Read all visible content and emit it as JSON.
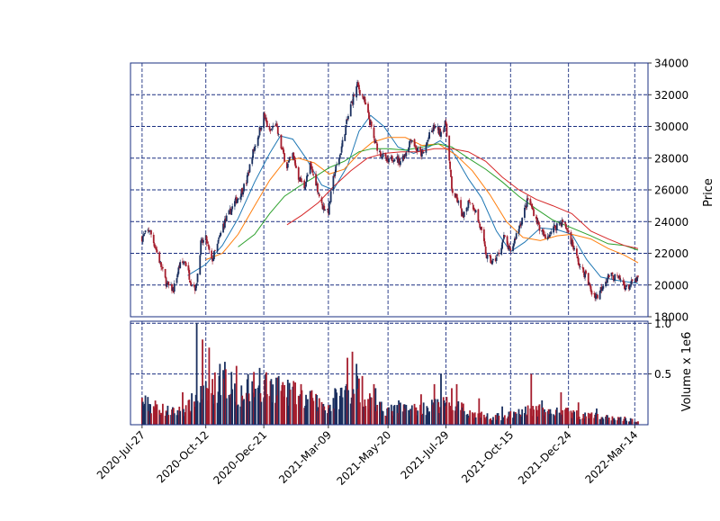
{
  "chart_data": {
    "type": "candlestick",
    "title": "",
    "ylabel": "Price",
    "volume_label": "Volume x 1e6",
    "ylim": [
      18000,
      34000
    ],
    "volume_ylim": [
      0,
      1.02
    ],
    "xlim": [
      "2020-07-13",
      "2022-03-30"
    ],
    "grid": true,
    "grid_style": "dashed",
    "legend": "none",
    "x_ticks": [
      "2020-Jul-27",
      "2020-Oct-12",
      "2020-Dec-21",
      "2021-Mar-09",
      "2021-May-20",
      "2021-Jul-29",
      "2021-Oct-15",
      "2021-Dec-24",
      "2022-Mar-14"
    ],
    "x_tick_dates": [
      "2020-07-27",
      "2020-10-12",
      "2020-12-21",
      "2021-03-09",
      "2021-05-20",
      "2021-07-29",
      "2021-10-15",
      "2021-12-24",
      "2022-03-14"
    ],
    "y_ticks": [
      "18000",
      "20000",
      "22000",
      "24000",
      "26000",
      "28000",
      "30000",
      "32000",
      "34000"
    ],
    "volume_ticks": [
      "0.5",
      "1.0"
    ],
    "colors": {
      "up": "#1a2f5f",
      "down": "#a51d2d",
      "grid": "#1a2f80",
      "ma_short": "#1f77b4",
      "ma_mid": "#ff7f0e",
      "ma_long": "#2ca02c",
      "ma_longest": "#d62728"
    },
    "price_path": [
      [
        "2020-07-27",
        23000
      ],
      [
        "2020-08-05",
        23500
      ],
      [
        "2020-08-12",
        22400
      ],
      [
        "2020-08-20",
        21000
      ],
      [
        "2020-08-26",
        20000
      ],
      [
        "2020-09-03",
        19700
      ],
      [
        "2020-09-10",
        21200
      ],
      [
        "2020-09-17",
        21500
      ],
      [
        "2020-09-24",
        20200
      ],
      [
        "2020-09-30",
        19800
      ],
      [
        "2020-10-06",
        22600
      ],
      [
        "2020-10-12",
        22900
      ],
      [
        "2020-10-19",
        21500
      ],
      [
        "2020-10-26",
        22500
      ],
      [
        "2020-11-02",
        23800
      ],
      [
        "2020-11-09",
        24500
      ],
      [
        "2020-11-16",
        25200
      ],
      [
        "2020-11-23",
        25800
      ],
      [
        "2020-11-30",
        26500
      ],
      [
        "2020-12-07",
        28200
      ],
      [
        "2020-12-14",
        29400
      ],
      [
        "2020-12-21",
        30700
      ],
      [
        "2020-12-28",
        29600
      ],
      [
        "2021-01-04",
        30200
      ],
      [
        "2021-01-11",
        28700
      ],
      [
        "2021-01-18",
        27500
      ],
      [
        "2021-01-25",
        28200
      ],
      [
        "2021-02-01",
        26800
      ],
      [
        "2021-02-08",
        26200
      ],
      [
        "2021-02-15",
        27500
      ],
      [
        "2021-02-22",
        26500
      ],
      [
        "2021-03-01",
        25000
      ],
      [
        "2021-03-09",
        24700
      ],
      [
        "2021-03-16",
        27000
      ],
      [
        "2021-03-23",
        28200
      ],
      [
        "2021-03-30",
        30000
      ],
      [
        "2021-04-06",
        31500
      ],
      [
        "2021-04-13",
        32600
      ],
      [
        "2021-04-20",
        31800
      ],
      [
        "2021-04-27",
        30500
      ],
      [
        "2021-05-04",
        29000
      ],
      [
        "2021-05-11",
        28300
      ],
      [
        "2021-05-20",
        27700
      ],
      [
        "2021-05-27",
        28100
      ],
      [
        "2021-06-03",
        27800
      ],
      [
        "2021-06-10",
        28300
      ],
      [
        "2021-06-17",
        29300
      ],
      [
        "2021-06-24",
        28500
      ],
      [
        "2021-07-01",
        28200
      ],
      [
        "2021-07-08",
        29300
      ],
      [
        "2021-07-15",
        30000
      ],
      [
        "2021-07-22",
        29600
      ],
      [
        "2021-07-29",
        30200
      ],
      [
        "2021-08-05",
        26000
      ],
      [
        "2021-08-12",
        25300
      ],
      [
        "2021-08-19",
        24200
      ],
      [
        "2021-08-26",
        25400
      ],
      [
        "2021-09-02",
        24800
      ],
      [
        "2021-09-09",
        23500
      ],
      [
        "2021-09-16",
        21800
      ],
      [
        "2021-09-23",
        21400
      ],
      [
        "2021-09-30",
        21900
      ],
      [
        "2021-10-07",
        23000
      ],
      [
        "2021-10-15",
        22000
      ],
      [
        "2021-10-22",
        23200
      ],
      [
        "2021-10-29",
        24200
      ],
      [
        "2021-11-05",
        25400
      ],
      [
        "2021-11-12",
        24600
      ],
      [
        "2021-11-19",
        23600
      ],
      [
        "2021-11-26",
        22900
      ],
      [
        "2021-12-03",
        23400
      ],
      [
        "2021-12-10",
        23800
      ],
      [
        "2021-12-17",
        24000
      ],
      [
        "2021-12-24",
        23300
      ],
      [
        "2021-12-31",
        22200
      ],
      [
        "2022-01-07",
        21100
      ],
      [
        "2022-01-14",
        20600
      ],
      [
        "2022-01-21",
        19500
      ],
      [
        "2022-01-28",
        19300
      ],
      [
        "2022-02-04",
        20100
      ],
      [
        "2022-02-11",
        20600
      ],
      [
        "2022-02-18",
        20500
      ],
      [
        "2022-02-25",
        20300
      ],
      [
        "2022-03-04",
        19800
      ],
      [
        "2022-03-11",
        20100
      ],
      [
        "2022-03-18",
        20400
      ]
    ],
    "moving_averages": [
      {
        "color_key": "ma_short",
        "points": [
          [
            "2020-09-20",
            20600
          ],
          [
            "2020-10-12",
            21300
          ],
          [
            "2020-11-01",
            22500
          ],
          [
            "2020-11-20",
            24200
          ],
          [
            "2020-12-10",
            26500
          ],
          [
            "2020-12-28",
            28300
          ],
          [
            "2021-01-10",
            29400
          ],
          [
            "2021-01-25",
            29200
          ],
          [
            "2021-02-10",
            28000
          ],
          [
            "2021-03-01",
            26300
          ],
          [
            "2021-03-15",
            26000
          ],
          [
            "2021-04-01",
            27500
          ],
          [
            "2021-04-15",
            29700
          ],
          [
            "2021-04-29",
            30700
          ],
          [
            "2021-05-15",
            30000
          ],
          [
            "2021-06-01",
            28700
          ],
          [
            "2021-06-20",
            28300
          ],
          [
            "2021-07-08",
            28700
          ],
          [
            "2021-07-22",
            29100
          ],
          [
            "2021-08-05",
            28500
          ],
          [
            "2021-08-25",
            26700
          ],
          [
            "2021-09-10",
            25500
          ],
          [
            "2021-09-28",
            23400
          ],
          [
            "2021-10-15",
            22100
          ],
          [
            "2021-11-01",
            22700
          ],
          [
            "2021-11-20",
            23600
          ],
          [
            "2021-12-10",
            23500
          ],
          [
            "2021-12-28",
            23200
          ],
          [
            "2022-01-15",
            21600
          ],
          [
            "2022-02-01",
            20500
          ],
          [
            "2022-02-20",
            20300
          ],
          [
            "2022-03-18",
            20100
          ]
        ]
      },
      {
        "color_key": "ma_mid",
        "points": [
          [
            "2020-10-12",
            21600
          ],
          [
            "2020-11-01",
            22000
          ],
          [
            "2020-11-20",
            23200
          ],
          [
            "2020-12-10",
            25000
          ],
          [
            "2020-12-28",
            26600
          ],
          [
            "2021-01-15",
            27800
          ],
          [
            "2021-02-01",
            28000
          ],
          [
            "2021-02-20",
            27700
          ],
          [
            "2021-03-10",
            27000
          ],
          [
            "2021-03-28",
            27300
          ],
          [
            "2021-04-15",
            28300
          ],
          [
            "2021-05-01",
            29000
          ],
          [
            "2021-05-20",
            29300
          ],
          [
            "2021-06-10",
            29300
          ],
          [
            "2021-06-30",
            28800
          ],
          [
            "2021-07-20",
            28900
          ],
          [
            "2021-08-10",
            28200
          ],
          [
            "2021-08-30",
            27200
          ],
          [
            "2021-09-20",
            25700
          ],
          [
            "2021-10-10",
            24000
          ],
          [
            "2021-10-30",
            23000
          ],
          [
            "2021-11-20",
            22800
          ],
          [
            "2021-12-10",
            23100
          ],
          [
            "2021-12-28",
            23200
          ],
          [
            "2022-01-20",
            22900
          ],
          [
            "2022-02-10",
            22300
          ],
          [
            "2022-03-01",
            21900
          ],
          [
            "2022-03-18",
            21400
          ]
        ]
      },
      {
        "color_key": "ma_long",
        "points": [
          [
            "2020-11-20",
            22400
          ],
          [
            "2020-12-10",
            23200
          ],
          [
            "2020-12-28",
            24500
          ],
          [
            "2021-01-15",
            25600
          ],
          [
            "2021-02-01",
            26200
          ],
          [
            "2021-02-20",
            26800
          ],
          [
            "2021-03-10",
            27400
          ],
          [
            "2021-03-28",
            27800
          ],
          [
            "2021-04-15",
            28400
          ],
          [
            "2021-05-01",
            28600
          ],
          [
            "2021-05-20",
            28600
          ],
          [
            "2021-06-10",
            28500
          ],
          [
            "2021-06-30",
            28700
          ],
          [
            "2021-07-20",
            28900
          ],
          [
            "2021-08-05",
            28700
          ],
          [
            "2021-08-25",
            28000
          ],
          [
            "2021-09-15",
            27300
          ],
          [
            "2021-10-05",
            26500
          ],
          [
            "2021-10-25",
            25600
          ],
          [
            "2021-11-15",
            24800
          ],
          [
            "2021-12-05",
            24100
          ],
          [
            "2021-12-28",
            23600
          ],
          [
            "2022-01-20",
            23100
          ],
          [
            "2022-02-10",
            22600
          ],
          [
            "2022-03-01",
            22500
          ],
          [
            "2022-03-18",
            22200
          ]
        ]
      },
      {
        "color_key": "ma_longest",
        "points": [
          [
            "2021-01-18",
            23800
          ],
          [
            "2021-02-05",
            24400
          ],
          [
            "2021-02-25",
            25200
          ],
          [
            "2021-03-15",
            26200
          ],
          [
            "2021-04-05",
            27200
          ],
          [
            "2021-04-25",
            28000
          ],
          [
            "2021-05-15",
            28300
          ],
          [
            "2021-06-05",
            28400
          ],
          [
            "2021-06-25",
            28400
          ],
          [
            "2021-07-15",
            28600
          ],
          [
            "2021-08-05",
            28600
          ],
          [
            "2021-08-25",
            28400
          ],
          [
            "2021-09-15",
            27800
          ],
          [
            "2021-10-05",
            26800
          ],
          [
            "2021-10-25",
            26000
          ],
          [
            "2021-11-15",
            25400
          ],
          [
            "2021-12-05",
            25000
          ],
          [
            "2021-12-28",
            24500
          ],
          [
            "2022-01-20",
            23400
          ],
          [
            "2022-02-10",
            22900
          ],
          [
            "2022-03-01",
            22500
          ],
          [
            "2022-03-18",
            22300
          ]
        ]
      }
    ],
    "volume_path": [
      [
        "2020-07-27",
        0.22
      ],
      [
        "2020-08-10",
        0.18
      ],
      [
        "2020-08-25",
        0.14
      ],
      [
        "2020-09-05",
        0.12
      ],
      [
        "2020-09-20",
        0.16
      ],
      [
        "2020-10-01",
        0.28
      ],
      [
        "2020-10-12",
        0.3
      ],
      [
        "2020-10-25",
        0.38
      ],
      [
        "2020-11-05",
        0.4
      ],
      [
        "2020-11-20",
        0.3
      ],
      [
        "2020-12-05",
        0.32
      ],
      [
        "2020-12-21",
        0.36
      ],
      [
        "2021-01-05",
        0.38
      ],
      [
        "2021-01-20",
        0.32
      ],
      [
        "2021-02-05",
        0.26
      ],
      [
        "2021-02-20",
        0.22
      ],
      [
        "2021-03-09",
        0.18
      ],
      [
        "2021-03-25",
        0.3
      ],
      [
        "2021-04-10",
        0.38
      ],
      [
        "2021-04-25",
        0.26
      ],
      [
        "2021-05-10",
        0.16
      ],
      [
        "2021-05-25",
        0.14
      ],
      [
        "2021-06-10",
        0.16
      ],
      [
        "2021-06-25",
        0.15
      ],
      [
        "2021-07-10",
        0.18
      ],
      [
        "2021-07-29",
        0.2
      ],
      [
        "2021-08-15",
        0.16
      ],
      [
        "2021-09-01",
        0.1
      ],
      [
        "2021-09-20",
        0.08
      ],
      [
        "2021-10-05",
        0.08
      ],
      [
        "2021-10-20",
        0.1
      ],
      [
        "2021-11-05",
        0.14
      ],
      [
        "2021-11-20",
        0.14
      ],
      [
        "2021-12-05",
        0.12
      ],
      [
        "2021-12-24",
        0.12
      ],
      [
        "2022-01-10",
        0.09
      ],
      [
        "2022-01-30",
        0.08
      ],
      [
        "2022-02-20",
        0.06
      ],
      [
        "2022-03-18",
        0.04
      ]
    ],
    "volume_spikes": [
      [
        "2020-08-01",
        0.18
      ],
      [
        "2020-09-14",
        0.32
      ],
      [
        "2020-10-01",
        1.0
      ],
      [
        "2020-10-08",
        0.84
      ],
      [
        "2020-10-16",
        0.76
      ],
      [
        "2020-10-29",
        0.6
      ],
      [
        "2020-11-04",
        0.62
      ],
      [
        "2020-11-12",
        0.52
      ],
      [
        "2020-11-18",
        0.58
      ],
      [
        "2020-12-02",
        0.5
      ],
      [
        "2020-12-09",
        0.52
      ],
      [
        "2020-12-16",
        0.56
      ],
      [
        "2020-12-23",
        0.5
      ],
      [
        "2021-01-08",
        0.48
      ],
      [
        "2021-01-13",
        0.42
      ],
      [
        "2021-02-04",
        0.4
      ],
      [
        "2021-02-17",
        0.34
      ],
      [
        "2021-03-17",
        0.36
      ],
      [
        "2021-04-01",
        0.66
      ],
      [
        "2021-04-07",
        0.72
      ],
      [
        "2021-04-12",
        0.6
      ],
      [
        "2021-04-19",
        0.48
      ],
      [
        "2021-05-03",
        0.4
      ],
      [
        "2021-05-05",
        0.36
      ],
      [
        "2021-06-02",
        0.24
      ],
      [
        "2021-06-29",
        0.3
      ],
      [
        "2021-07-15",
        0.4
      ],
      [
        "2021-07-23",
        0.5
      ],
      [
        "2021-08-05",
        0.36
      ],
      [
        "2021-08-11",
        0.4
      ],
      [
        "2021-09-07",
        0.26
      ],
      [
        "2021-10-05",
        0.18
      ],
      [
        "2021-11-09",
        0.5
      ],
      [
        "2021-11-22",
        0.24
      ],
      [
        "2021-12-15",
        0.32
      ],
      [
        "2022-01-05",
        0.22
      ],
      [
        "2022-01-27",
        0.16
      ],
      [
        "2022-03-02",
        0.08
      ]
    ]
  }
}
